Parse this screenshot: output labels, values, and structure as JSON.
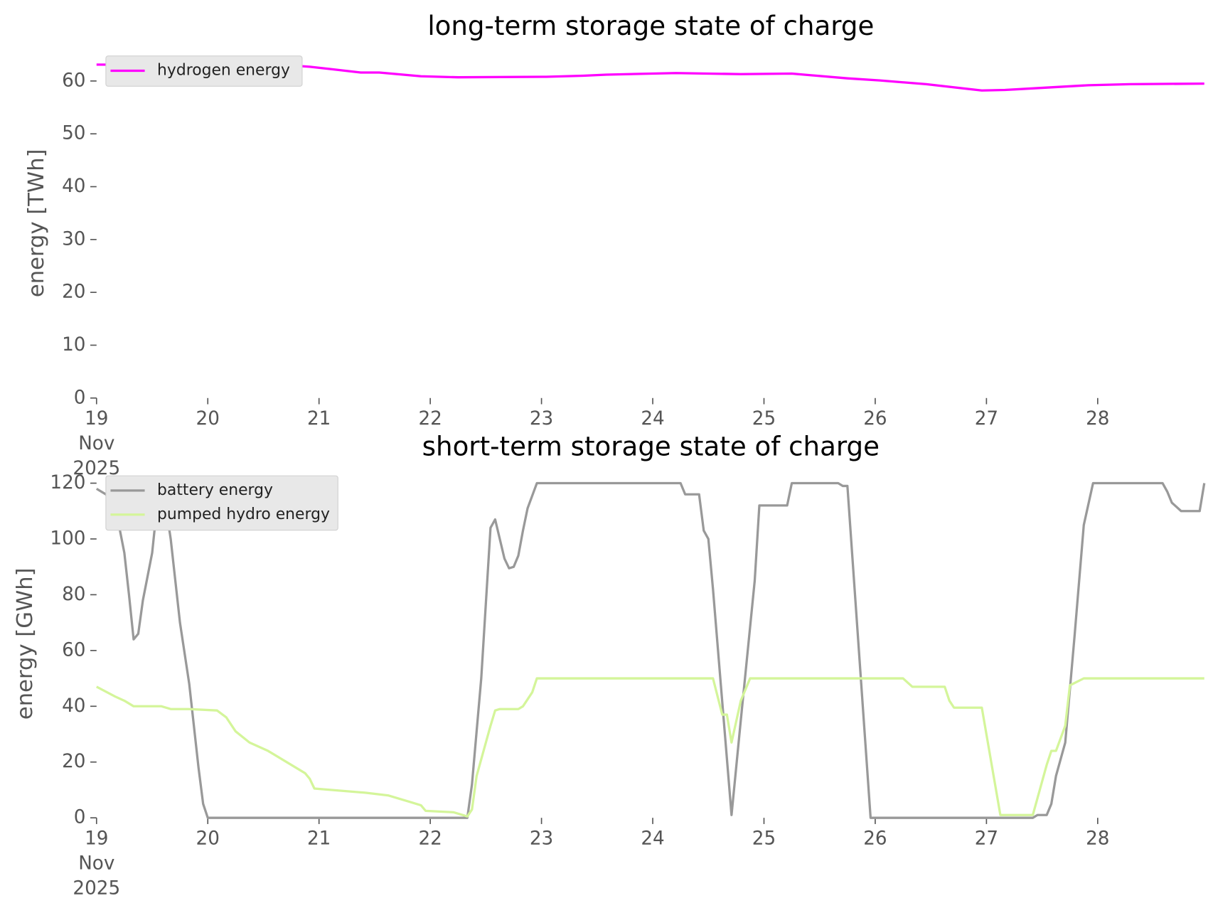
{
  "chart_data": [
    {
      "type": "line",
      "title": "long-term storage state of charge",
      "ylabel": "energy [TWh]",
      "xlim": [
        "2025-11-19 00:00",
        "2025-11-28 23:00"
      ],
      "ylim": [
        0,
        66.5
      ],
      "yticks": [
        0,
        10,
        20,
        30,
        40,
        50,
        60
      ],
      "xticks": [
        {
          "value": "2025-11-19 00:00",
          "label": "19\nNov\n2025"
        },
        {
          "value": "2025-11-20 00:00",
          "label": "20"
        },
        {
          "value": "2025-11-21 00:00",
          "label": "21"
        },
        {
          "value": "2025-11-22 00:00",
          "label": "22"
        },
        {
          "value": "2025-11-23 00:00",
          "label": "23"
        },
        {
          "value": "2025-11-24 00:00",
          "label": "24"
        },
        {
          "value": "2025-11-25 00:00",
          "label": "25"
        },
        {
          "value": "2025-11-26 00:00",
          "label": "26"
        },
        {
          "value": "2025-11-27 00:00",
          "label": "27"
        },
        {
          "value": "2025-11-28 00:00",
          "label": "28"
        }
      ],
      "legend": "upper left",
      "series": [
        {
          "name": "hydrogen energy",
          "color": "#ff00ff",
          "x": [
            "2025-11-19 00:00",
            "2025-11-20 17:00",
            "2025-11-20 22:00",
            "2025-11-21 03:00",
            "2025-11-21 09:00",
            "2025-11-21 13:00",
            "2025-11-21 22:00",
            "2025-11-22 06:00",
            "2025-11-23 01:00",
            "2025-11-23 09:00",
            "2025-11-23 14:00",
            "2025-11-24 05:00",
            "2025-11-24 19:00",
            "2025-11-25 06:00",
            "2025-11-25 18:00",
            "2025-11-26 01:00",
            "2025-11-26 11:00",
            "2025-11-26 23:00",
            "2025-11-27 04:00",
            "2025-11-27 14:00",
            "2025-11-27 22:00",
            "2025-11-28 07:00",
            "2025-11-28 23:00"
          ],
          "values": [
            63.1,
            63,
            62.7,
            62.2,
            61.6,
            61.6,
            60.9,
            60.7,
            60.8,
            61,
            61.2,
            61.5,
            61.3,
            61.4,
            60.5,
            60.1,
            59.4,
            58.2,
            58.3,
            58.8,
            59.2,
            59.4,
            59.5
          ]
        }
      ]
    },
    {
      "type": "line",
      "title": "short-term storage state of charge",
      "ylabel": "energy [GWh]",
      "xlim": [
        "2025-11-19 00:00",
        "2025-11-28 23:00"
      ],
      "ylim": [
        0,
        126
      ],
      "yticks": [
        0,
        20,
        40,
        60,
        80,
        100,
        120
      ],
      "xticks": [
        {
          "value": "2025-11-19 00:00",
          "label": "19\nNov\n2025"
        },
        {
          "value": "2025-11-20 00:00",
          "label": "20"
        },
        {
          "value": "2025-11-21 00:00",
          "label": "21"
        },
        {
          "value": "2025-11-22 00:00",
          "label": "22"
        },
        {
          "value": "2025-11-23 00:00",
          "label": "23"
        },
        {
          "value": "2025-11-24 00:00",
          "label": "24"
        },
        {
          "value": "2025-11-25 00:00",
          "label": "25"
        },
        {
          "value": "2025-11-26 00:00",
          "label": "26"
        },
        {
          "value": "2025-11-27 00:00",
          "label": "27"
        },
        {
          "value": "2025-11-28 00:00",
          "label": "28"
        }
      ],
      "legend": "upper left",
      "series": [
        {
          "name": "battery energy",
          "color": "#999999",
          "x": [
            "2025-11-19 00:00",
            "2025-11-19 02:00",
            "2025-11-19 04:00",
            "2025-11-19 06:00",
            "2025-11-19 07:00",
            "2025-11-19 08:00",
            "2025-11-19 09:00",
            "2025-11-19 10:00",
            "2025-11-19 12:00",
            "2025-11-19 13:00",
            "2025-11-19 15:00",
            "2025-11-19 16:00",
            "2025-11-19 18:00",
            "2025-11-19 20:00",
            "2025-11-19 22:00",
            "2025-11-19 23:00",
            "2025-11-20 00:00",
            "2025-11-22 08:00",
            "2025-11-22 09:00",
            "2025-11-22 11:00",
            "2025-11-22 13:00",
            "2025-11-22 14:00",
            "2025-11-22 16:00",
            "2025-11-22 17:00",
            "2025-11-22 18:00",
            "2025-11-22 19:00",
            "2025-11-22 20:00",
            "2025-11-22 21:00",
            "2025-11-22 23:00",
            "2025-11-24 06:00",
            "2025-11-24 07:00",
            "2025-11-24 10:00",
            "2025-11-24 11:00",
            "2025-11-24 12:00",
            "2025-11-24 13:00",
            "2025-11-24 17:00",
            "2025-11-24 19:00",
            "2025-11-24 22:00",
            "2025-11-24 23:00",
            "2025-11-25 05:00",
            "2025-11-25 06:00",
            "2025-11-25 16:00",
            "2025-11-25 17:00",
            "2025-11-25 18:00",
            "2025-11-25 23:00",
            "2025-11-27 10:00",
            "2025-11-27 11:00",
            "2025-11-27 13:00",
            "2025-11-27 14:00",
            "2025-11-27 15:00",
            "2025-11-27 17:00",
            "2025-11-27 19:00",
            "2025-11-27 21:00",
            "2025-11-27 23:00",
            "2025-11-28 14:00",
            "2025-11-28 15:00",
            "2025-11-28 16:00",
            "2025-11-28 18:00",
            "2025-11-28 22:00",
            "2025-11-28 23:00"
          ],
          "values": [
            118,
            116,
            112,
            95,
            80,
            64,
            66,
            78,
            95,
            111,
            111,
            100,
            70,
            48,
            18,
            5,
            0,
            0,
            12,
            50,
            104,
            107,
            93,
            89.5,
            90,
            94,
            103,
            111,
            120,
            120,
            116,
            116,
            103,
            100,
            82,
            1,
            35,
            85,
            112,
            112,
            120,
            120,
            119,
            119,
            0,
            0,
            1,
            1,
            5,
            15,
            27,
            65,
            105,
            120,
            120,
            117,
            113,
            110,
            110,
            120
          ]
        },
        {
          "name": "pumped hydro energy",
          "color": "#d4f59a",
          "x": [
            "2025-11-19 00:00",
            "2025-11-19 04:00",
            "2025-11-19 06:00",
            "2025-11-19 08:00",
            "2025-11-19 14:00",
            "2025-11-19 16:00",
            "2025-11-19 20:00",
            "2025-11-20 02:00",
            "2025-11-20 04:00",
            "2025-11-20 06:00",
            "2025-11-20 09:00",
            "2025-11-20 13:00",
            "2025-11-20 21:00",
            "2025-11-20 22:00",
            "2025-11-20 23:00",
            "2025-11-21 10:00",
            "2025-11-21 15:00",
            "2025-11-21 20:00",
            "2025-11-21 22:00",
            "2025-11-21 23:00",
            "2025-11-22 05:00",
            "2025-11-22 08:00",
            "2025-11-22 09:00",
            "2025-11-22 10:00",
            "2025-11-22 13:00",
            "2025-11-22 14:00",
            "2025-11-22 15:00",
            "2025-11-22 19:00",
            "2025-11-22 20:00",
            "2025-11-22 22:00",
            "2025-11-22 23:00",
            "2025-11-24 13:00",
            "2025-11-24 15:00",
            "2025-11-24 16:00",
            "2025-11-24 17:00",
            "2025-11-24 19:00",
            "2025-11-24 21:00",
            "2025-11-26 06:00",
            "2025-11-26 08:00",
            "2025-11-26 15:00",
            "2025-11-26 16:00",
            "2025-11-26 17:00",
            "2025-11-26 23:00",
            "2025-11-27 03:00",
            "2025-11-27 10:00",
            "2025-11-27 13:00",
            "2025-11-27 14:00",
            "2025-11-27 15:00",
            "2025-11-27 17:00",
            "2025-11-27 18:00",
            "2025-11-27 21:00",
            "2025-11-28 23:00"
          ],
          "values": [
            47,
            43.5,
            42,
            40,
            40,
            39,
            39,
            38.5,
            36,
            31,
            27,
            24,
            16,
            14,
            10.5,
            9,
            8,
            5.5,
            4.5,
            2.5,
            2,
            0.5,
            3,
            15,
            33,
            38.5,
            39,
            39,
            40,
            45,
            50,
            50,
            37,
            37,
            27,
            42,
            50,
            50,
            47,
            47,
            42,
            39.5,
            39.5,
            1,
            1,
            19,
            24,
            24,
            33,
            47.5,
            50,
            50
          ]
        }
      ]
    }
  ]
}
